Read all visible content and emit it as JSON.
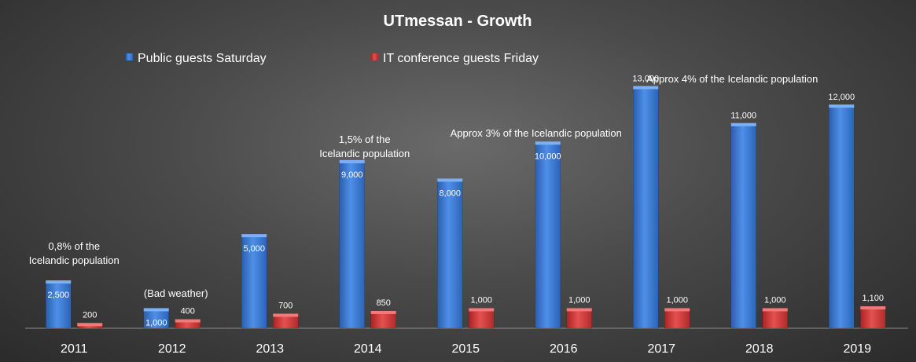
{
  "chart_data": {
    "type": "bar",
    "title": "UTmessan - Growth",
    "categories": [
      "2011",
      "2012",
      "2013",
      "2014",
      "2015",
      "2016",
      "2017",
      "2018",
      "2019"
    ],
    "series": [
      {
        "name": "Public guests Saturday",
        "color": "#3a78d4",
        "values": [
          2500,
          1000,
          5000,
          9000,
          8000,
          10000,
          13000,
          11000,
          12000
        ],
        "labels": [
          "2,500",
          "1,000",
          "5,000",
          "9,000",
          "8,000",
          "10,000",
          "13,000",
          "11,000",
          "12,000"
        ]
      },
      {
        "name": "IT conference guests Friday",
        "color": "#d23a3a",
        "values": [
          200,
          400,
          700,
          850,
          1000,
          1000,
          1000,
          1000,
          1100
        ],
        "labels": [
          "200",
          "400",
          "700",
          "850",
          "1,000",
          "1,000",
          "1,000",
          "1,000",
          "1,100"
        ]
      }
    ],
    "ylim": [
      0,
      14000
    ],
    "grid": false,
    "legend_position": "top",
    "annotations": [
      {
        "lines": [
          "0,8% of  the",
          "Icelandic population"
        ],
        "category_index": 0
      },
      {
        "lines": [
          "(Bad weather)"
        ],
        "category_index": 1
      },
      {
        "lines": [
          "1,5% of  the",
          "Icelandic population"
        ],
        "category_index": 3
      },
      {
        "lines": [
          "Approx 3% of  the Icelandic population"
        ],
        "category_index": 5
      },
      {
        "lines": [
          "Approx 4% of  the Icelandic population"
        ],
        "category_index": 6
      }
    ]
  }
}
